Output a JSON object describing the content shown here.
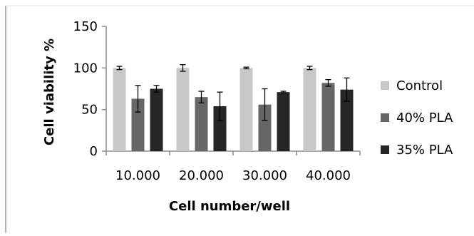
{
  "chart_data": {
    "type": "bar",
    "categories": [
      "10.000",
      "20.000",
      "30.000",
      "40.000"
    ],
    "series": [
      {
        "name": "Control",
        "color": "#c8c8c8",
        "values": [
          100,
          100,
          100,
          100
        ],
        "errors": [
          2,
          4,
          1,
          2
        ]
      },
      {
        "name": "40% PLA",
        "color": "#666666",
        "values": [
          63,
          65,
          56,
          82
        ],
        "errors": [
          16,
          7,
          19,
          4
        ]
      },
      {
        "name": "35% PLA",
        "color": "#262626",
        "values": [
          75,
          54,
          71,
          74
        ],
        "errors": [
          4,
          17,
          1,
          14
        ]
      }
    ],
    "xlabel": "Cell number/well",
    "ylabel": "Cell viability %",
    "ylim": [
      0,
      150
    ],
    "yticks": [
      0,
      50,
      100,
      150
    ],
    "grid": false,
    "legend": "right"
  }
}
